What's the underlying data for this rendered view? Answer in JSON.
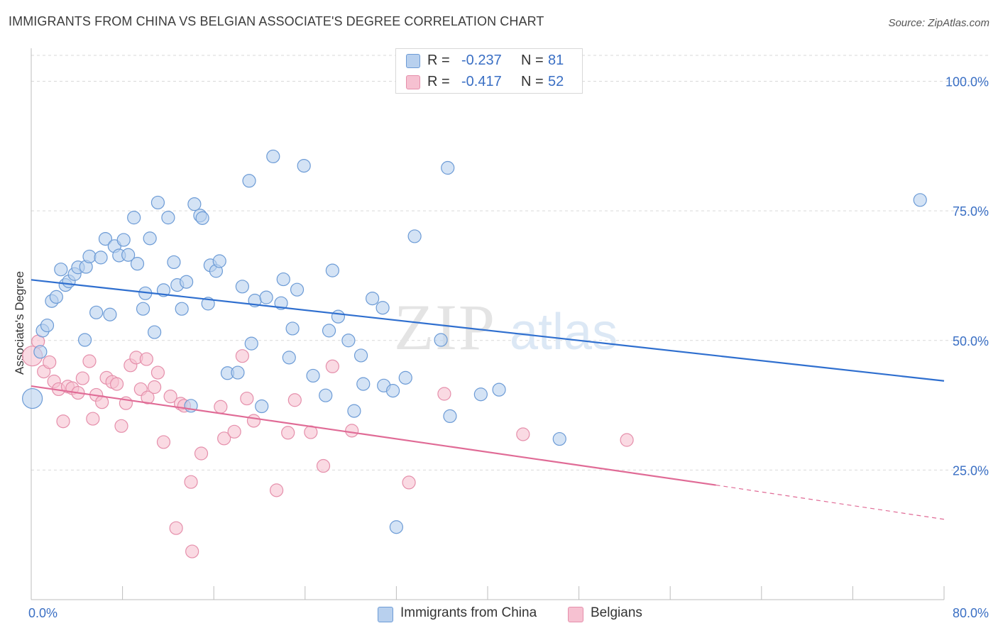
{
  "title": "IMMIGRANTS FROM CHINA VS BELGIAN ASSOCIATE'S DEGREE CORRELATION CHART",
  "source": "Source: ZipAtlas.com",
  "watermark": {
    "zip": "ZIP",
    "atlas": "atlas"
  },
  "colors": {
    "blue_fill": "#b8d0ee",
    "blue_stroke": "#6c9bd6",
    "blue_line": "#2f6fcf",
    "pink_fill": "#f6c1d1",
    "pink_stroke": "#e58fab",
    "pink_line": "#e06b96",
    "tick_label": "#3a6fc4",
    "grid": "#d9d9d9"
  },
  "stats": [
    {
      "series": "Immigrants from China",
      "r_label": "R =",
      "r_value": "-0.237",
      "n_label": "N =",
      "n_value": "81"
    },
    {
      "series": "Belgians",
      "r_label": "R =",
      "r_value": "-0.417",
      "n_label": "N =",
      "n_value": "52"
    }
  ],
  "legend": [
    "Immigrants from China",
    "Belgians"
  ],
  "chart_data": {
    "type": "scatter",
    "title": "IMMIGRANTS FROM CHINA VS BELGIAN ASSOCIATE'S DEGREE CORRELATION CHART",
    "xlabel": "",
    "ylabel": "Associate's Degree",
    "xlim": [
      0,
      80
    ],
    "ylim": [
      0,
      105
    ],
    "x_ticks": [
      0,
      8,
      16,
      24,
      32,
      40,
      48,
      56,
      64,
      72,
      80
    ],
    "x_tick_labels": [
      {
        "value": 0,
        "label": "0.0%"
      },
      {
        "value": 80,
        "label": "80.0%"
      }
    ],
    "y_ticks": [
      {
        "value": 25,
        "label": "25.0%"
      },
      {
        "value": 50,
        "label": "50.0%"
      },
      {
        "value": 75,
        "label": "75.0%"
      },
      {
        "value": 100,
        "label": "100.0%"
      }
    ],
    "grid": "horizontal dashed",
    "legend_position": "bottom-center",
    "series": [
      {
        "name": "Immigrants from China",
        "color": "#6c9bd6",
        "trend": {
          "x": [
            0,
            80
          ],
          "y": [
            61.7,
            42.2
          ]
        },
        "points": [
          {
            "x": 0.1,
            "y": 38.8,
            "big": true
          },
          {
            "x": 0.8,
            "y": 47.8
          },
          {
            "x": 1.0,
            "y": 51.9
          },
          {
            "x": 1.4,
            "y": 52.9
          },
          {
            "x": 1.8,
            "y": 57.6
          },
          {
            "x": 2.2,
            "y": 58.4
          },
          {
            "x": 2.6,
            "y": 63.7
          },
          {
            "x": 3.0,
            "y": 60.7
          },
          {
            "x": 3.3,
            "y": 61.4
          },
          {
            "x": 3.8,
            "y": 62.8
          },
          {
            "x": 4.1,
            "y": 64.1
          },
          {
            "x": 4.8,
            "y": 64.2
          },
          {
            "x": 5.1,
            "y": 66.2
          },
          {
            "x": 4.7,
            "y": 50.1
          },
          {
            "x": 5.7,
            "y": 55.4
          },
          {
            "x": 6.1,
            "y": 66.0
          },
          {
            "x": 6.5,
            "y": 69.6
          },
          {
            "x": 6.9,
            "y": 55.0
          },
          {
            "x": 7.3,
            "y": 68.2
          },
          {
            "x": 7.7,
            "y": 66.4
          },
          {
            "x": 8.1,
            "y": 69.4
          },
          {
            "x": 8.5,
            "y": 66.5
          },
          {
            "x": 9.0,
            "y": 73.7
          },
          {
            "x": 9.3,
            "y": 64.8
          },
          {
            "x": 9.8,
            "y": 56.1
          },
          {
            "x": 10.0,
            "y": 59.1
          },
          {
            "x": 10.4,
            "y": 69.7
          },
          {
            "x": 10.8,
            "y": 51.6
          },
          {
            "x": 11.1,
            "y": 76.6
          },
          {
            "x": 11.6,
            "y": 59.7
          },
          {
            "x": 12.0,
            "y": 73.7
          },
          {
            "x": 12.5,
            "y": 65.1
          },
          {
            "x": 12.8,
            "y": 60.7
          },
          {
            "x": 13.2,
            "y": 56.1
          },
          {
            "x": 13.6,
            "y": 61.3
          },
          {
            "x": 14.0,
            "y": 37.4
          },
          {
            "x": 14.3,
            "y": 76.3
          },
          {
            "x": 14.8,
            "y": 74.1
          },
          {
            "x": 15.0,
            "y": 73.6
          },
          {
            "x": 15.5,
            "y": 57.1
          },
          {
            "x": 15.7,
            "y": 64.5
          },
          {
            "x": 16.2,
            "y": 63.4
          },
          {
            "x": 16.5,
            "y": 65.3
          },
          {
            "x": 17.2,
            "y": 43.7
          },
          {
            "x": 18.1,
            "y": 43.8
          },
          {
            "x": 18.5,
            "y": 60.4
          },
          {
            "x": 19.1,
            "y": 80.8
          },
          {
            "x": 19.3,
            "y": 49.4
          },
          {
            "x": 19.6,
            "y": 57.7
          },
          {
            "x": 20.2,
            "y": 37.3
          },
          {
            "x": 20.6,
            "y": 58.3
          },
          {
            "x": 21.2,
            "y": 85.5
          },
          {
            "x": 21.9,
            "y": 57.2
          },
          {
            "x": 22.1,
            "y": 61.8
          },
          {
            "x": 22.6,
            "y": 46.7
          },
          {
            "x": 22.9,
            "y": 52.3
          },
          {
            "x": 23.3,
            "y": 59.8
          },
          {
            "x": 23.9,
            "y": 83.7
          },
          {
            "x": 24.7,
            "y": 43.2
          },
          {
            "x": 25.8,
            "y": 39.4
          },
          {
            "x": 26.1,
            "y": 51.9
          },
          {
            "x": 26.4,
            "y": 63.5
          },
          {
            "x": 26.9,
            "y": 54.6
          },
          {
            "x": 27.8,
            "y": 50.0
          },
          {
            "x": 28.3,
            "y": 36.4
          },
          {
            "x": 28.9,
            "y": 47.1
          },
          {
            "x": 29.1,
            "y": 41.6
          },
          {
            "x": 29.9,
            "y": 58.1
          },
          {
            "x": 30.8,
            "y": 56.3
          },
          {
            "x": 30.9,
            "y": 41.3
          },
          {
            "x": 31.7,
            "y": 40.3
          },
          {
            "x": 32.0,
            "y": 14.0
          },
          {
            "x": 32.8,
            "y": 42.8
          },
          {
            "x": 33.6,
            "y": 70.1
          },
          {
            "x": 35.9,
            "y": 50.1
          },
          {
            "x": 36.5,
            "y": 83.3
          },
          {
            "x": 36.7,
            "y": 35.4
          },
          {
            "x": 39.4,
            "y": 39.6
          },
          {
            "x": 41.0,
            "y": 40.5
          },
          {
            "x": 46.3,
            "y": 31.0
          },
          {
            "x": 77.9,
            "y": 77.1
          }
        ]
      },
      {
        "name": "Belgians",
        "color": "#e58fab",
        "trend": {
          "x": [
            0,
            60
          ],
          "y": [
            41.2,
            22.1
          ]
        },
        "trend_dashed": {
          "x": [
            60,
            80
          ],
          "y": [
            22.1,
            15.5
          ]
        },
        "points": [
          {
            "x": 0.1,
            "y": 47.0,
            "big": true
          },
          {
            "x": 0.6,
            "y": 49.8
          },
          {
            "x": 1.1,
            "y": 44.0
          },
          {
            "x": 1.6,
            "y": 45.8
          },
          {
            "x": 2.0,
            "y": 42.1
          },
          {
            "x": 2.4,
            "y": 40.6
          },
          {
            "x": 2.8,
            "y": 34.4
          },
          {
            "x": 3.2,
            "y": 41.1
          },
          {
            "x": 3.6,
            "y": 40.8
          },
          {
            "x": 4.1,
            "y": 39.9
          },
          {
            "x": 4.5,
            "y": 42.7
          },
          {
            "x": 5.1,
            "y": 46.0
          },
          {
            "x": 5.4,
            "y": 34.9
          },
          {
            "x": 5.7,
            "y": 39.5
          },
          {
            "x": 6.2,
            "y": 38.1
          },
          {
            "x": 6.6,
            "y": 42.8
          },
          {
            "x": 7.1,
            "y": 42.0
          },
          {
            "x": 7.5,
            "y": 41.6
          },
          {
            "x": 7.9,
            "y": 33.5
          },
          {
            "x": 8.3,
            "y": 37.9
          },
          {
            "x": 8.7,
            "y": 45.2
          },
          {
            "x": 9.2,
            "y": 46.7
          },
          {
            "x": 9.6,
            "y": 40.6
          },
          {
            "x": 10.1,
            "y": 46.4
          },
          {
            "x": 10.2,
            "y": 39.0
          },
          {
            "x": 10.8,
            "y": 41.0
          },
          {
            "x": 11.1,
            "y": 43.8
          },
          {
            "x": 11.6,
            "y": 30.4
          },
          {
            "x": 12.2,
            "y": 39.2
          },
          {
            "x": 12.7,
            "y": 13.8
          },
          {
            "x": 13.1,
            "y": 37.8
          },
          {
            "x": 13.4,
            "y": 37.4
          },
          {
            "x": 14.0,
            "y": 22.7
          },
          {
            "x": 14.1,
            "y": 9.3
          },
          {
            "x": 14.9,
            "y": 28.2
          },
          {
            "x": 16.6,
            "y": 37.2
          },
          {
            "x": 16.9,
            "y": 31.1
          },
          {
            "x": 17.8,
            "y": 32.4
          },
          {
            "x": 18.5,
            "y": 47.0
          },
          {
            "x": 18.9,
            "y": 38.8
          },
          {
            "x": 19.5,
            "y": 34.5
          },
          {
            "x": 21.5,
            "y": 21.1
          },
          {
            "x": 22.5,
            "y": 32.2
          },
          {
            "x": 23.1,
            "y": 38.5
          },
          {
            "x": 24.5,
            "y": 32.3
          },
          {
            "x": 25.6,
            "y": 25.8
          },
          {
            "x": 26.4,
            "y": 45.0
          },
          {
            "x": 28.1,
            "y": 32.6
          },
          {
            "x": 33.1,
            "y": 22.6
          },
          {
            "x": 36.2,
            "y": 39.7
          },
          {
            "x": 43.1,
            "y": 31.9
          },
          {
            "x": 52.2,
            "y": 30.8
          }
        ]
      }
    ]
  }
}
